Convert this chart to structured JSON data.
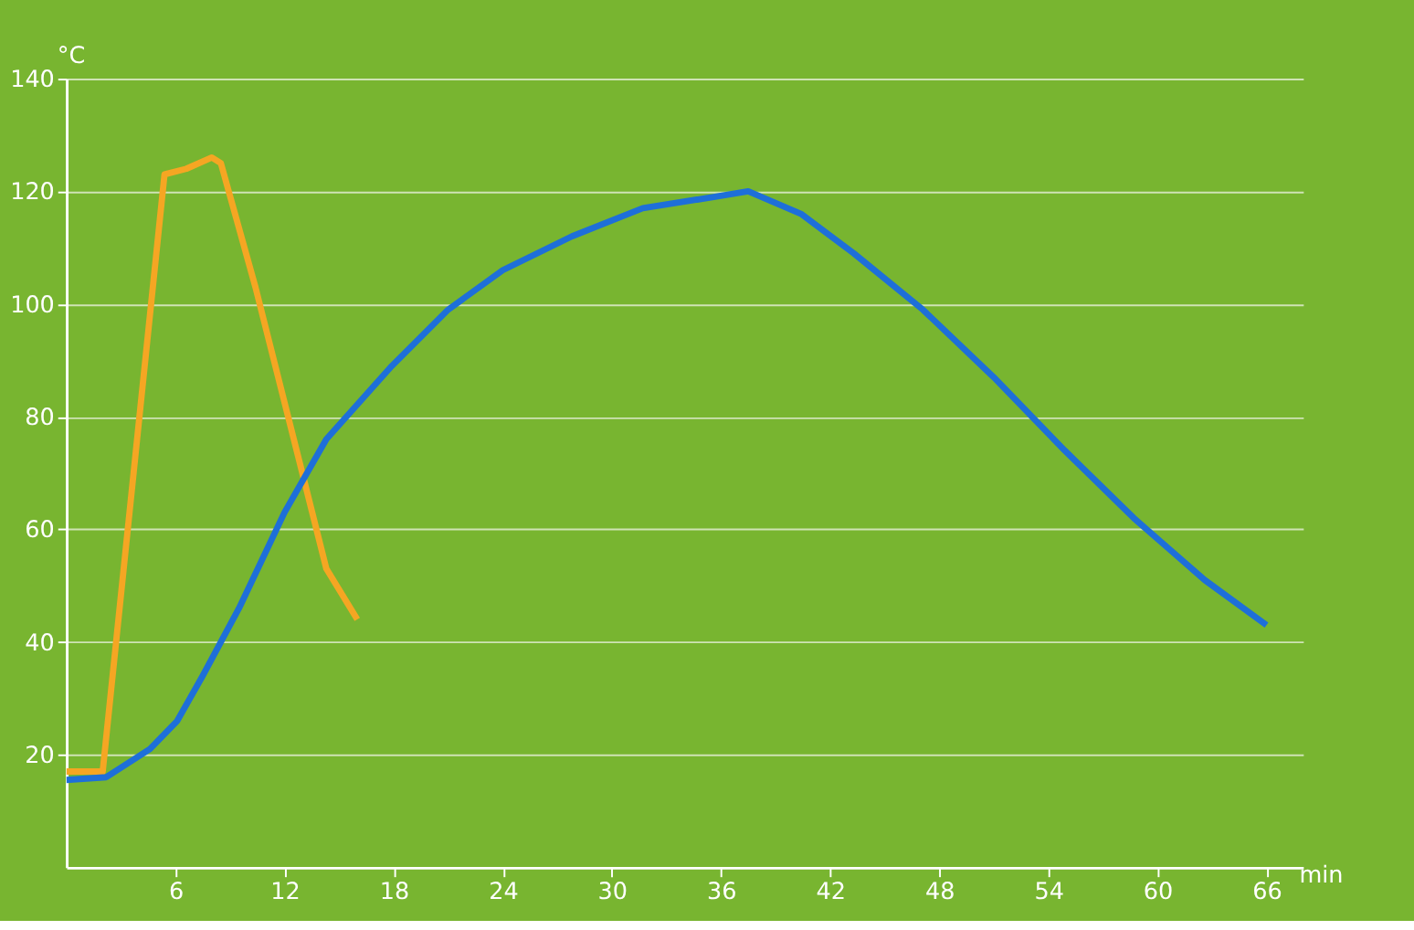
{
  "chart_data": {
    "type": "line",
    "xlabel": "min",
    "ylabel": "°C",
    "xlim": [
      0,
      68
    ],
    "ylim": [
      0,
      140
    ],
    "xticks": [
      6,
      12,
      18,
      24,
      30,
      36,
      42,
      48,
      54,
      60,
      66
    ],
    "yticks": [
      20,
      40,
      60,
      80,
      100,
      120,
      140
    ],
    "grid": "y",
    "marker": "none",
    "line_style": "solid",
    "series": [
      {
        "color": "#f5a623",
        "x": [
          0,
          2,
          5.4,
          6.6,
          8,
          8.5,
          10.4,
          12.9,
          14.3,
          16
        ],
        "values": [
          17,
          17,
          123,
          124,
          126,
          125,
          103,
          71,
          53,
          44
        ]
      },
      {
        "color": "#1e6fd9",
        "x": [
          0,
          2.2,
          4.6,
          6.1,
          7.5,
          9.5,
          12,
          14.3,
          17.9,
          21,
          24,
          27.8,
          31.7,
          35.6,
          37.5,
          40.4,
          43.3,
          47.1,
          51,
          54.9,
          58.7,
          62.6,
          66
        ],
        "values": [
          15.5,
          16,
          21,
          26,
          34,
          46,
          63,
          76,
          89,
          99,
          106,
          112,
          117,
          119,
          120,
          116,
          109,
          99,
          87,
          74,
          62,
          51,
          43
        ]
      }
    ]
  }
}
